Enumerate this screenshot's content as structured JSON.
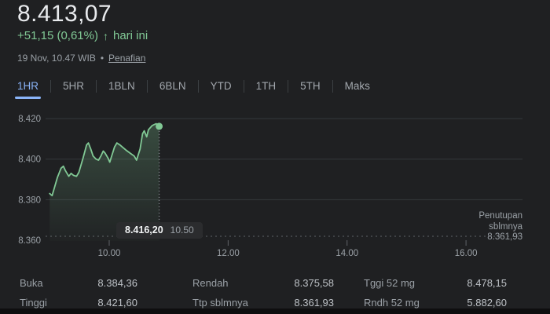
{
  "header": {
    "price": "8.413,07",
    "change": "+51,15 (0,61%)",
    "change_arrow": "↑",
    "change_period": "hari ini",
    "timestamp": "19 Nov, 10.47 WIB",
    "separator": "•",
    "disclaimer_link": "Penafian"
  },
  "tabs": {
    "items": [
      {
        "label": "1HR",
        "active": true
      },
      {
        "label": "5HR",
        "active": false
      },
      {
        "label": "1BLN",
        "active": false
      },
      {
        "label": "6BLN",
        "active": false
      },
      {
        "label": "YTD",
        "active": false
      },
      {
        "label": "1TH",
        "active": false
      },
      {
        "label": "5TH",
        "active": false
      },
      {
        "label": "Maks",
        "active": false
      }
    ]
  },
  "chart_data": {
    "type": "area",
    "title": "Intraday price chart (1 day)",
    "x": [
      9.0,
      9.04,
      9.07,
      9.13,
      9.19,
      9.23,
      9.26,
      9.32,
      9.36,
      9.4,
      9.45,
      9.49,
      9.56,
      9.62,
      9.65,
      9.69,
      9.73,
      9.78,
      9.82,
      9.86,
      9.9,
      9.93,
      9.98,
      10.01,
      10.03,
      10.09,
      10.13,
      10.18,
      10.22,
      10.28,
      10.35,
      10.42,
      10.46,
      10.52,
      10.56,
      10.59,
      10.63,
      10.66,
      10.72,
      10.79,
      10.84
    ],
    "values": [
      8383,
      8382,
      8385,
      8391,
      8395.5,
      8396.5,
      8394.5,
      8391.5,
      8393,
      8392,
      8391.5,
      8393.5,
      8400.5,
      8407,
      8408,
      8405,
      8401.5,
      8400,
      8399.5,
      8401.5,
      8404,
      8403,
      8400.5,
      8398.5,
      8400.5,
      8406,
      8408,
      8407,
      8406,
      8404.5,
      8403,
      8401.5,
      8399.5,
      8405,
      8412.5,
      8414,
      8411,
      8414.5,
      8416.5,
      8417.5,
      8416.2
    ],
    "x_domain": [
      8.93,
      16.95
    ],
    "y_domain": [
      8359.2,
      8424.3
    ],
    "x_ticks": [
      {
        "value": 10,
        "label": "10.00"
      },
      {
        "value": 12,
        "label": "12.00"
      },
      {
        "value": 14,
        "label": "14.00"
      },
      {
        "value": 16,
        "label": "16.00"
      }
    ],
    "y_ticks": [
      {
        "value": 8420,
        "label": "8.420",
        "grid": true
      },
      {
        "value": 8400,
        "label": "8.400",
        "grid": true
      },
      {
        "value": 8380,
        "label": "8.380",
        "grid": true
      },
      {
        "value": 8360,
        "label": "8.360",
        "grid": false
      }
    ],
    "prev_close": {
      "value": 8361.93,
      "label": "Penutupan sblmnya",
      "value_label": "8.361,93"
    },
    "last_point": {
      "value": 8416.2,
      "value_label": "8.416,20",
      "time_label": "10.50"
    },
    "colors": {
      "line": "#81c995",
      "fill_top": "rgba(129,201,149,0.26)",
      "fill_bottom": "rgba(129,201,149,0.02)",
      "grid": "#35383c",
      "axis_text": "#9aa0a6",
      "dotted": "#5f6368",
      "crosshair": "#8b9095",
      "accent_blue": "#8ab4f8"
    }
  },
  "stats": {
    "columns": [
      [
        {
          "label": "Buka",
          "value": "8.384,36"
        },
        {
          "label": "Tinggi",
          "value": "8.421,60"
        }
      ],
      [
        {
          "label": "Rendah",
          "value": "8.375,58"
        },
        {
          "label": "Ttp sblmnya",
          "value": "8.361,93"
        }
      ],
      [
        {
          "label": "Tggi 52 mg",
          "value": "8.478,15"
        },
        {
          "label": "Rndh 52 mg",
          "value": "5.882,60"
        }
      ]
    ]
  }
}
